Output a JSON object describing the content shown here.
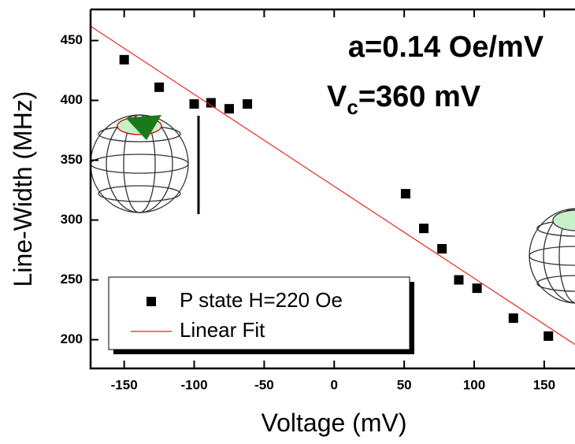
{
  "chart_data": {
    "type": "scatter",
    "xlabel": "Voltage (mV)",
    "ylabel": "Line-Width (MHz)",
    "annotations": [
      {
        "main": "a=0.14 Oe/mV"
      },
      {
        "main": "V",
        "sub": "c",
        "rest": "=360 mV"
      }
    ],
    "xlim": [
      -174,
      172
    ],
    "ylim": [
      176,
      476
    ],
    "xticks": [
      -150,
      -100,
      -50,
      0,
      50,
      100,
      150
    ],
    "yticks": [
      200,
      250,
      300,
      350,
      400,
      450
    ],
    "series": [
      {
        "name": "P state H=220 Oe",
        "color": "#000000",
        "marker": "square",
        "x": [
          -150,
          -125,
          -100,
          -88,
          -75,
          -62,
          51,
          64,
          77,
          89,
          102,
          128,
          153
        ],
        "values": [
          434,
          411,
          397,
          398,
          393,
          397,
          322,
          293,
          276,
          250,
          243,
          218,
          203
        ]
      },
      {
        "name": "Linear Fit",
        "color": "#e8231f",
        "marker": "line",
        "x": [
          -174,
          172
        ],
        "values": [
          462,
          196
        ]
      }
    ],
    "legend": "lower-left"
  }
}
